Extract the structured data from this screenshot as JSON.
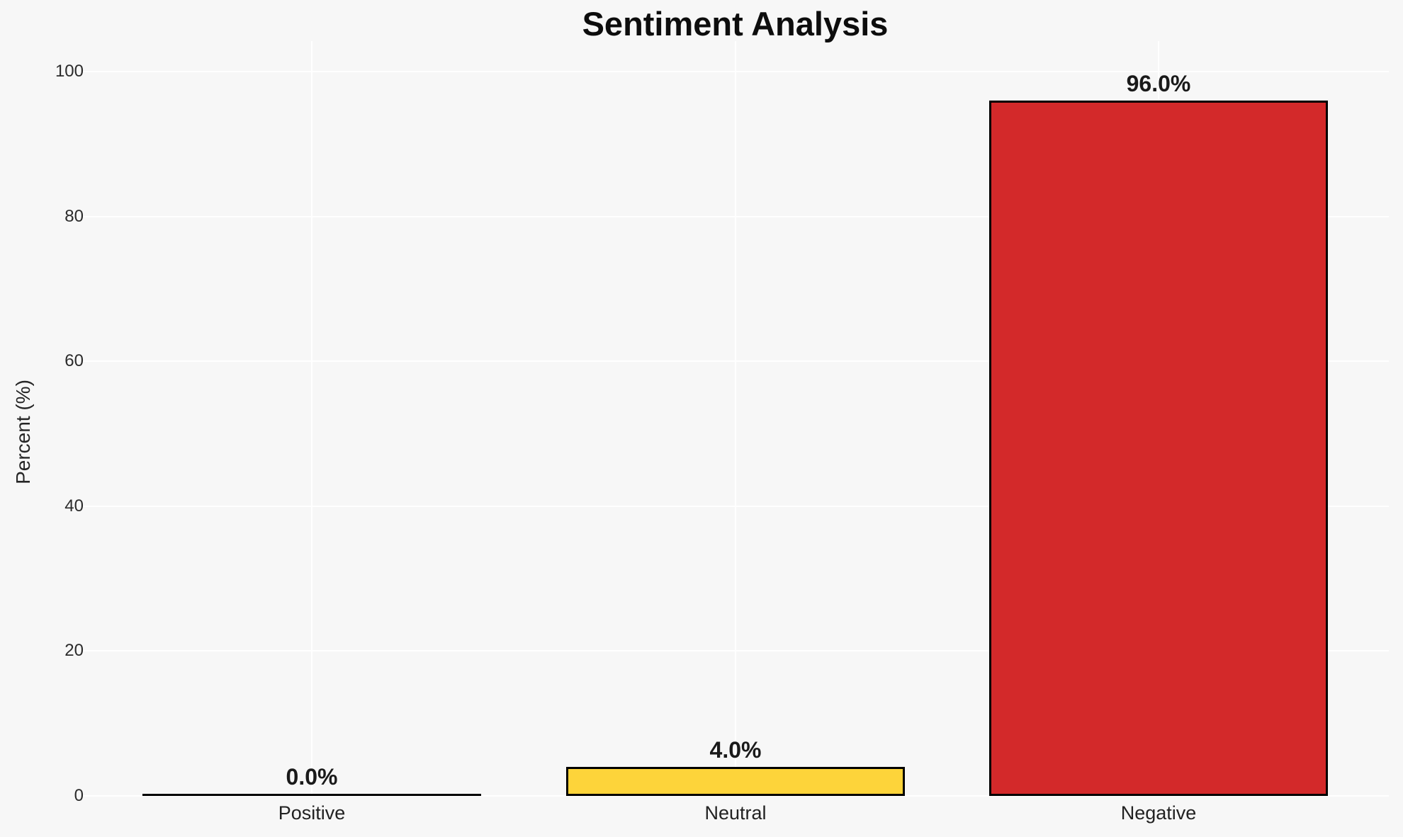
{
  "chart_data": {
    "type": "bar",
    "title": "Sentiment Analysis",
    "categories": [
      "Positive",
      "Neutral",
      "Negative"
    ],
    "values": [
      0.0,
      4.0,
      96.0
    ],
    "value_labels": [
      "0.0%",
      "4.0%",
      "96.0%"
    ],
    "xlabel": "",
    "ylabel": "Percent (%)",
    "yticks": [
      0,
      20,
      40,
      60,
      80,
      100
    ],
    "ytick_labels": [
      "0",
      "20",
      "40",
      "60",
      "80",
      "100"
    ],
    "ylim": [
      0,
      100
    ],
    "grid": true,
    "legend": false,
    "colors": {
      "bars": [
        null,
        "#fdd43a",
        "#d3292a"
      ],
      "bar_edge": "#000000",
      "background": "#f7f7f7",
      "gridline": "#ffffff"
    }
  }
}
